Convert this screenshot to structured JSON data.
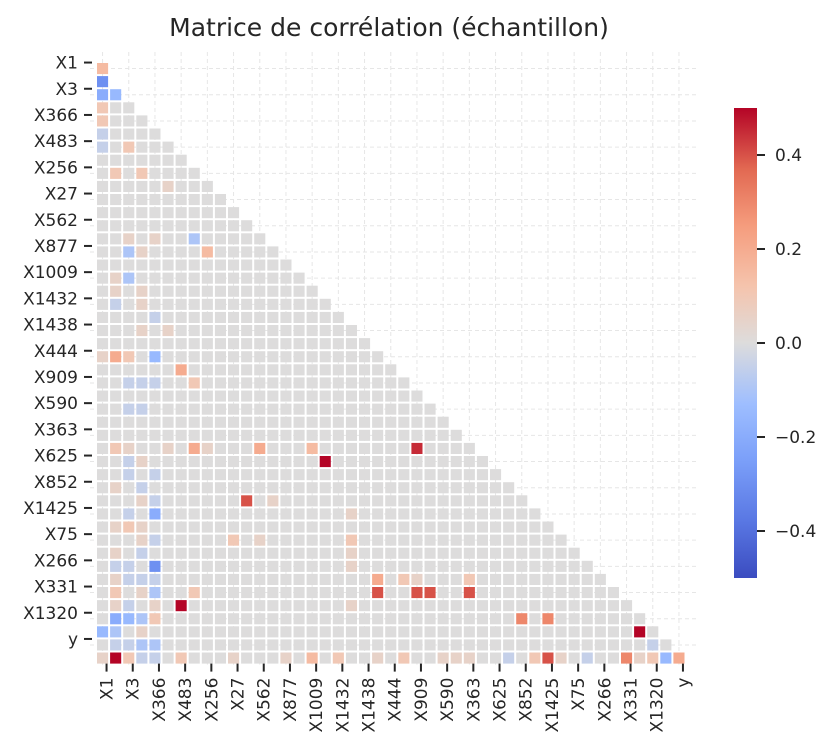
{
  "chart_data": {
    "type": "heatmap",
    "title": "Matrice de corrélation (échantillon)",
    "xlabel": "",
    "ylabel": "",
    "mask": "upper-triangle",
    "grid": true,
    "n": 45,
    "tick_labels": [
      "X1",
      "X3",
      "X366",
      "X483",
      "X256",
      "X27",
      "X562",
      "X877",
      "X1009",
      "X1432",
      "X1438",
      "X444",
      "X909",
      "X590",
      "X363",
      "X625",
      "X852",
      "X1425",
      "X75",
      "X266",
      "X331",
      "X1320",
      "y"
    ],
    "tick_every": 2,
    "colorbar": {
      "range": [
        -0.5,
        0.5
      ],
      "ticks": [
        -0.4,
        -0.2,
        0.0,
        0.2,
        0.4
      ],
      "tick_labels": [
        "−0.4",
        "−0.2",
        "0.0",
        "0.2",
        "0.4"
      ],
      "colormap": "coolwarm",
      "low_color": "#3b4cc0",
      "mid_color": "#dddddd",
      "high_color": "#b40426"
    },
    "default_value": 0.0,
    "notable_cells": [
      [
        1,
        0,
        -0.3
      ],
      [
        2,
        0,
        -0.2
      ],
      [
        2,
        1,
        -0.15
      ],
      [
        3,
        0,
        0.1
      ],
      [
        2,
        3,
        0.1
      ],
      [
        4,
        0,
        0.1
      ],
      [
        5,
        0,
        -0.05
      ],
      [
        6,
        0,
        -0.05
      ],
      [
        6,
        2,
        0.1
      ],
      [
        1,
        1,
        0.1
      ],
      [
        0,
        0,
        0.15
      ],
      [
        0,
        1,
        0.5
      ],
      [
        1,
        2,
        0.15
      ],
      [
        8,
        1,
        0.1
      ],
      [
        8,
        3,
        0.1
      ],
      [
        9,
        5,
        0.05
      ],
      [
        13,
        7,
        -0.1
      ],
      [
        13,
        4,
        0.05
      ],
      [
        13,
        2,
        0.05
      ],
      [
        14,
        2,
        -0.1
      ],
      [
        14,
        3,
        0.05
      ],
      [
        16,
        1,
        0.05
      ],
      [
        16,
        2,
        -0.1
      ],
      [
        17,
        1,
        0.05
      ],
      [
        17,
        3,
        0.05
      ],
      [
        18,
        1,
        -0.05
      ],
      [
        18,
        3,
        0.05
      ],
      [
        20,
        3,
        0.05
      ],
      [
        20,
        5,
        0.05
      ],
      [
        22,
        0,
        0.05
      ],
      [
        22,
        1,
        0.2
      ],
      [
        22,
        2,
        0.1
      ],
      [
        22,
        4,
        -0.15
      ],
      [
        24,
        2,
        -0.05
      ],
      [
        24,
        3,
        -0.05
      ],
      [
        26,
        2,
        -0.05
      ],
      [
        26,
        3,
        -0.05
      ],
      [
        29,
        1,
        0.1
      ],
      [
        29,
        2,
        0.05
      ],
      [
        29,
        5,
        0.05
      ],
      [
        29,
        12,
        0.15
      ],
      [
        30,
        2,
        -0.05
      ],
      [
        30,
        3,
        0.05
      ],
      [
        31,
        2,
        -0.05
      ],
      [
        31,
        4,
        -0.05
      ],
      [
        32,
        1,
        0.05
      ],
      [
        32,
        3,
        -0.05
      ],
      [
        33,
        3,
        0.05
      ],
      [
        33,
        4,
        -0.05
      ],
      [
        34,
        2,
        -0.05
      ],
      [
        34,
        4,
        -0.2
      ],
      [
        35,
        1,
        0.05
      ],
      [
        35,
        3,
        0.05
      ],
      [
        36,
        3,
        0.05
      ],
      [
        36,
        4,
        -0.05
      ],
      [
        37,
        1,
        0.05
      ],
      [
        37,
        3,
        0.05
      ],
      [
        38,
        1,
        -0.05
      ],
      [
        38,
        2,
        -0.05
      ],
      [
        39,
        1,
        0.05
      ],
      [
        39,
        2,
        -0.05
      ],
      [
        39,
        3,
        -0.05
      ],
      [
        39,
        4,
        -0.05
      ],
      [
        40,
        1,
        0.1
      ],
      [
        40,
        3,
        0.05
      ],
      [
        40,
        4,
        -0.1
      ],
      [
        41,
        1,
        0.05
      ],
      [
        41,
        2,
        -0.05
      ],
      [
        41,
        4,
        0.05
      ],
      [
        42,
        2,
        -0.05
      ],
      [
        42,
        3,
        -0.05
      ],
      [
        43,
        1,
        0.05
      ],
      [
        43,
        3,
        0.05
      ],
      [
        44,
        2,
        -0.05
      ],
      [
        44,
        3,
        -0.05
      ],
      [
        45,
        3,
        -0.05
      ],
      [
        45,
        4,
        -0.05
      ],
      [
        8,
        10,
        0.05
      ],
      [
        9,
        10,
        0.05
      ],
      [
        13,
        18,
        0.1
      ],
      [
        14,
        18,
        0.05
      ],
      [
        15,
        18,
        0.05
      ],
      [
        16,
        18,
        0.05
      ],
      [
        19,
        4,
        -0.05
      ],
      [
        24,
        4,
        -0.05
      ]
    ],
    "highlight_cells": [
      [
        1,
        1,
        0.5
      ],
      [
        10,
        11,
        0.15
      ],
      [
        12,
        12,
        0.1
      ],
      [
        14,
        8,
        0.15
      ],
      [
        15,
        19,
        0.1
      ],
      [
        23,
        6,
        0.2
      ],
      [
        24,
        7,
        0.1
      ],
      [
        29,
        7,
        0.2
      ],
      [
        29,
        12,
        0.2
      ],
      [
        29,
        16,
        0.15
      ],
      [
        29,
        8,
        0.05
      ],
      [
        30,
        17,
        0.5
      ],
      [
        33,
        13,
        0.05
      ],
      [
        34,
        19,
        0.05
      ],
      [
        35,
        2,
        0.1
      ],
      [
        36,
        10,
        0.1
      ],
      [
        36,
        12,
        0.05
      ],
      [
        36,
        19,
        0.1
      ],
      [
        37,
        1,
        0.05
      ],
      [
        37,
        3,
        -0.05
      ],
      [
        37,
        19,
        0.05
      ],
      [
        38,
        4,
        -0.3
      ],
      [
        38,
        19,
        0.05
      ],
      [
        39,
        21,
        0.2
      ],
      [
        39,
        23,
        0.1
      ],
      [
        39,
        24,
        0.05
      ],
      [
        39,
        28,
        0.1
      ],
      [
        40,
        7,
        0.1
      ],
      [
        40,
        21,
        0.4
      ],
      [
        40,
        25,
        0.4
      ],
      [
        41,
        6,
        0.5
      ],
      [
        41,
        19,
        0.05
      ],
      [
        42,
        1,
        -0.2
      ],
      [
        42,
        2,
        -0.15
      ],
      [
        42,
        3,
        -0.1
      ],
      [
        42,
        4,
        0.1
      ],
      [
        42,
        34,
        0.3
      ],
      [
        43,
        0,
        -0.15
      ],
      [
        43,
        1,
        -0.1
      ],
      [
        43,
        3,
        0.05
      ],
      [
        43,
        41,
        0.5
      ],
      [
        44,
        1,
        -0.05
      ],
      [
        44,
        3,
        -0.1
      ],
      [
        44,
        4,
        -0.1
      ],
      [
        44,
        42,
        -0.05
      ],
      [
        45,
        0,
        0.05
      ],
      [
        45,
        1,
        0.5
      ],
      [
        45,
        2,
        0.1
      ],
      [
        45,
        6,
        0.1
      ],
      [
        45,
        10,
        0.05
      ],
      [
        45,
        14,
        0.05
      ],
      [
        45,
        16,
        0.15
      ],
      [
        45,
        18,
        0.1
      ],
      [
        45,
        21,
        0.05
      ],
      [
        45,
        23,
        0.1
      ],
      [
        45,
        26,
        0.05
      ],
      [
        45,
        27,
        0.05
      ],
      [
        45,
        28,
        0.05
      ],
      [
        45,
        31,
        -0.05
      ],
      [
        45,
        33,
        0.1
      ],
      [
        45,
        35,
        0.05
      ],
      [
        45,
        37,
        -0.05
      ],
      [
        45,
        40,
        0.3
      ],
      [
        45,
        41,
        0.05
      ],
      [
        45,
        42,
        0.1
      ],
      [
        45,
        43,
        -0.15
      ],
      [
        45,
        44,
        0.2
      ],
      [
        45,
        45,
        0.2
      ]
    ],
    "strong_cells": [
      [
        29,
        24,
        0.45
      ],
      [
        33,
        11,
        0.4
      ],
      [
        40,
        24,
        0.4
      ],
      [
        40,
        28,
        0.4
      ],
      [
        42,
        32,
        0.3
      ],
      [
        45,
        34,
        0.4
      ]
    ]
  }
}
